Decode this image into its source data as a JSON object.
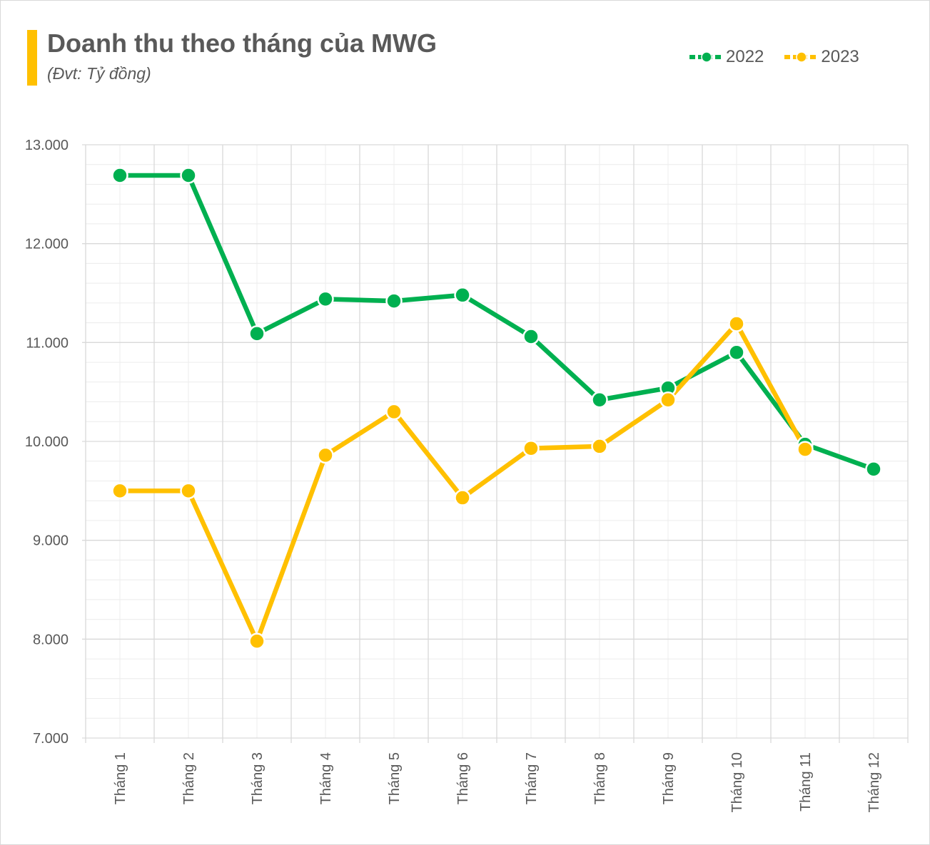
{
  "title": "Doanh thu theo tháng của MWG",
  "subtitle": "(Đvt: Tỷ đồng)",
  "colors": {
    "accent": "#FFC000",
    "series_2022": "#00B050",
    "series_2023": "#FFC000",
    "grid": "#d9d9d9",
    "text": "#595959"
  },
  "chart_data": {
    "type": "line",
    "title": "Doanh thu theo tháng của MWG",
    "subtitle": "(Đvt: Tỷ đồng)",
    "categories": [
      "Tháng 1",
      "Tháng 2",
      "Tháng 3",
      "Tháng 4",
      "Tháng 5",
      "Tháng 6",
      "Tháng 7",
      "Tháng 8",
      "Tháng 9",
      "Tháng 10",
      "Tháng 11",
      "Tháng 12"
    ],
    "series": [
      {
        "name": "2022",
        "color": "#00B050",
        "values": [
          12690,
          12690,
          11090,
          11440,
          11420,
          11480,
          11060,
          10420,
          10540,
          10900,
          9970,
          9720
        ]
      },
      {
        "name": "2023",
        "color": "#FFC000",
        "values": [
          9500,
          9500,
          7980,
          9860,
          10300,
          9430,
          9930,
          9950,
          10420,
          11190,
          9920,
          null
        ]
      }
    ],
    "ylim": [
      7000,
      13000
    ],
    "yticks": [
      7000,
      8000,
      9000,
      10000,
      11000,
      12000,
      13000
    ],
    "ytick_labels": [
      "7.000",
      "8.000",
      "9.000",
      "10.000",
      "11.000",
      "12.000",
      "13.000"
    ],
    "xlabel": "",
    "ylabel": "",
    "grid": true,
    "legend": "top-right"
  }
}
